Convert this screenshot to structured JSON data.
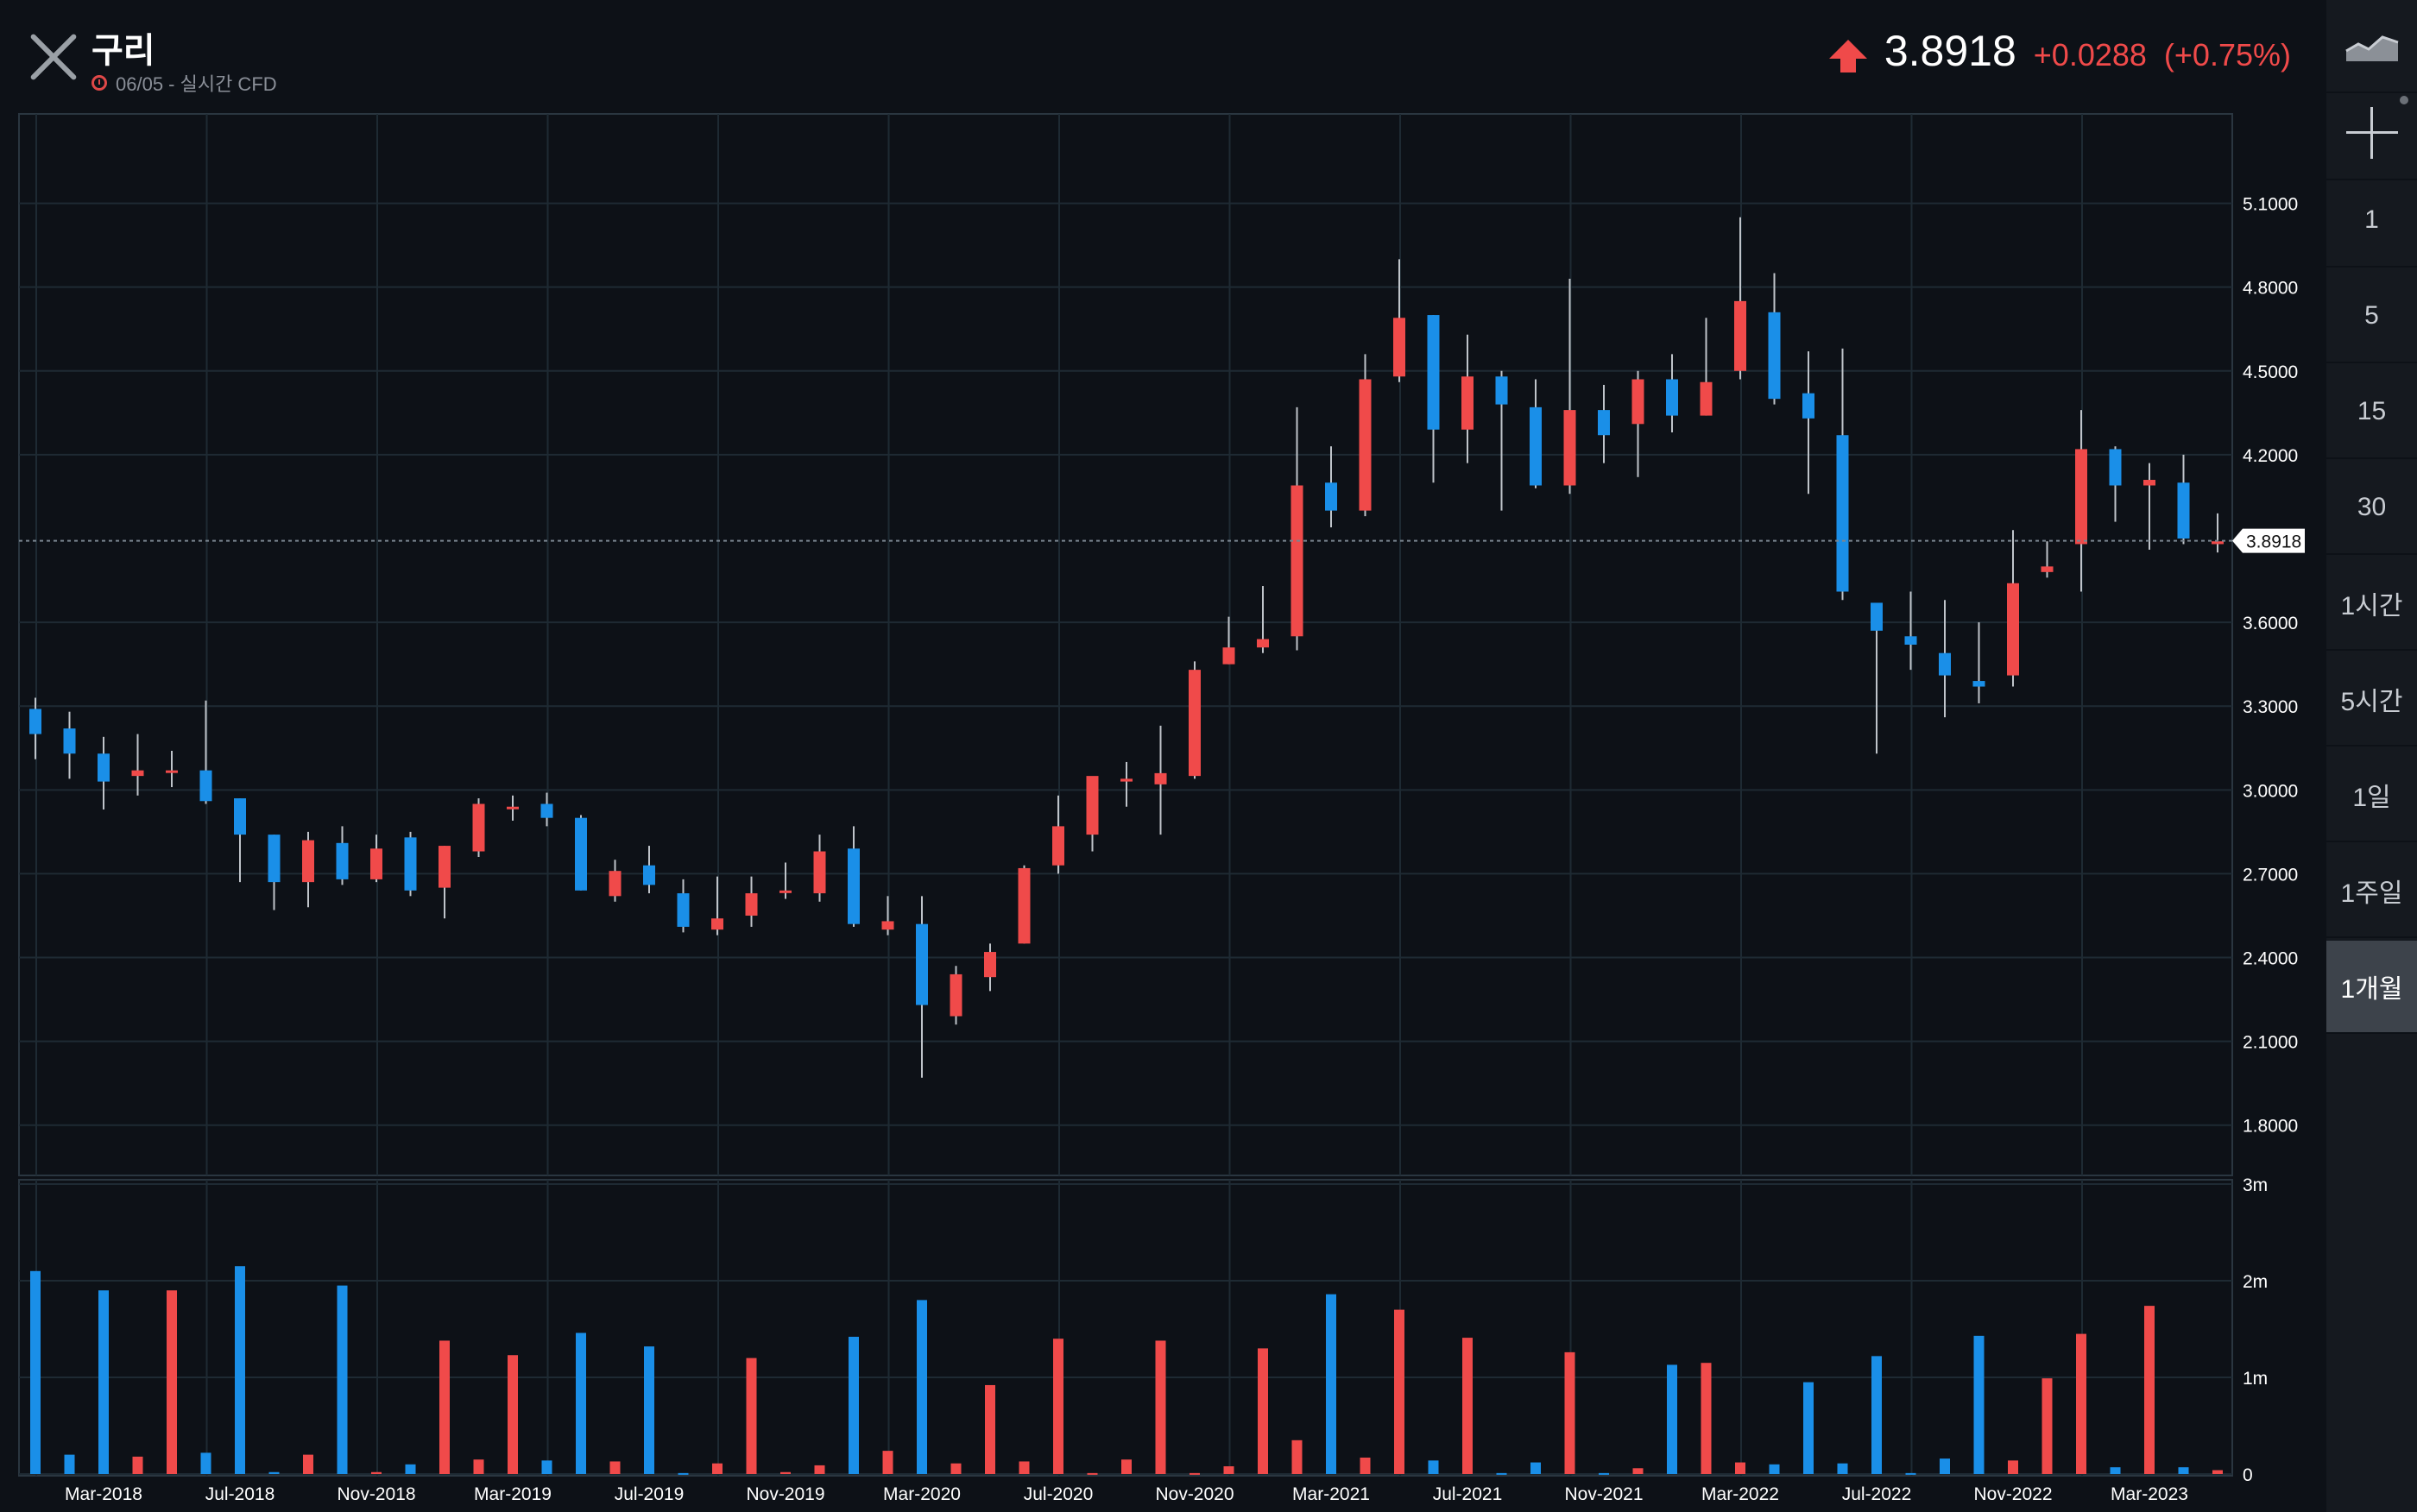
{
  "header": {
    "title": "구리",
    "subtitle": "06/05 - 실시간 CFD",
    "price": "3.8918",
    "change": "+0.0288",
    "change_pct": "(+0.75%)"
  },
  "colors": {
    "up": "#f04a4a",
    "down": "#1a8fe8",
    "background": "#0d1117",
    "grid": "#1e2a33"
  },
  "sidebar": {
    "items": [
      {
        "label": "",
        "icon": "area-chart-icon"
      },
      {
        "label": "",
        "icon": "crosshair-icon"
      },
      {
        "label": "1"
      },
      {
        "label": "5"
      },
      {
        "label": "15"
      },
      {
        "label": "30"
      },
      {
        "label": "1시간"
      },
      {
        "label": "5시간"
      },
      {
        "label": "1일"
      },
      {
        "label": "1주일"
      },
      {
        "label": "1개월",
        "active": true
      }
    ]
  },
  "chart_data": {
    "type": "candlestick",
    "current_price_label": "3.8918",
    "current_price": 3.8918,
    "ylim": [
      1.62,
      5.42
    ],
    "yticks": [
      5.1,
      4.8,
      4.5,
      4.2,
      3.6,
      3.3,
      3.0,
      2.7,
      2.4,
      2.1,
      1.8
    ],
    "ytick_labels": [
      "5.1000",
      "4.8000",
      "4.5000",
      "4.2000",
      "3.6000",
      "3.3000",
      "3.0000",
      "2.7000",
      "2.4000",
      "2.1000",
      "1.8000"
    ],
    "xtick_labels": [
      "Mar-2018",
      "Jul-2018",
      "Nov-2018",
      "Mar-2019",
      "Jul-2019",
      "Nov-2019",
      "Mar-2020",
      "Jul-2020",
      "Nov-2020",
      "Mar-2021",
      "Jul-2021",
      "Nov-2021",
      "Mar-2022",
      "Jul-2022",
      "Nov-2022",
      "Mar-2023"
    ],
    "xtick_index": [
      2,
      6,
      10,
      14,
      18,
      22,
      26,
      30,
      34,
      38,
      42,
      46,
      50,
      54,
      58,
      62
    ],
    "volume_ylim": [
      0,
      3
    ],
    "volume_ticks": [
      3,
      2,
      1,
      0
    ],
    "volume_tick_labels": [
      "3m",
      "2m",
      "1m",
      "0"
    ],
    "candles": [
      {
        "o": 3.29,
        "h": 3.33,
        "l": 3.11,
        "c": 3.2,
        "v": 2.1
      },
      {
        "o": 3.22,
        "h": 3.28,
        "l": 3.04,
        "c": 3.13,
        "v": 0.2
      },
      {
        "o": 3.13,
        "h": 3.19,
        "l": 2.93,
        "c": 3.03,
        "v": 1.9
      },
      {
        "o": 3.05,
        "h": 3.2,
        "l": 2.98,
        "c": 3.07,
        "v": 0.18
      },
      {
        "o": 3.07,
        "h": 3.14,
        "l": 3.01,
        "c": 3.07,
        "v": 1.9
      },
      {
        "o": 3.07,
        "h": 3.32,
        "l": 2.95,
        "c": 2.96,
        "v": 0.22
      },
      {
        "o": 2.97,
        "h": 2.97,
        "l": 2.67,
        "c": 2.84,
        "v": 2.15
      },
      {
        "o": 2.84,
        "h": 2.84,
        "l": 2.57,
        "c": 2.67,
        "v": 0.02
      },
      {
        "o": 2.67,
        "h": 2.85,
        "l": 2.58,
        "c": 2.82,
        "v": 0.2
      },
      {
        "o": 2.81,
        "h": 2.87,
        "l": 2.66,
        "c": 2.68,
        "v": 1.95
      },
      {
        "o": 2.68,
        "h": 2.84,
        "l": 2.67,
        "c": 2.79,
        "v": 0.02
      },
      {
        "o": 2.83,
        "h": 2.85,
        "l": 2.62,
        "c": 2.64,
        "v": 0.1
      },
      {
        "o": 2.65,
        "h": 2.8,
        "l": 2.54,
        "c": 2.8,
        "v": 1.38
      },
      {
        "o": 2.78,
        "h": 2.97,
        "l": 2.76,
        "c": 2.95,
        "v": 0.15
      },
      {
        "o": 2.94,
        "h": 2.98,
        "l": 2.89,
        "c": 2.94,
        "v": 1.23
      },
      {
        "o": 2.95,
        "h": 2.99,
        "l": 2.87,
        "c": 2.9,
        "v": 0.14
      },
      {
        "o": 2.9,
        "h": 2.91,
        "l": 2.64,
        "c": 2.64,
        "v": 1.46
      },
      {
        "o": 2.62,
        "h": 2.75,
        "l": 2.6,
        "c": 2.71,
        "v": 0.13
      },
      {
        "o": 2.73,
        "h": 2.8,
        "l": 2.63,
        "c": 2.66,
        "v": 1.32
      },
      {
        "o": 2.63,
        "h": 2.68,
        "l": 2.49,
        "c": 2.51,
        "v": 0.01
      },
      {
        "o": 2.5,
        "h": 2.69,
        "l": 2.48,
        "c": 2.54,
        "v": 0.11
      },
      {
        "o": 2.55,
        "h": 2.69,
        "l": 2.51,
        "c": 2.63,
        "v": 1.2
      },
      {
        "o": 2.64,
        "h": 2.74,
        "l": 2.61,
        "c": 2.64,
        "v": 0.02
      },
      {
        "o": 2.63,
        "h": 2.84,
        "l": 2.6,
        "c": 2.78,
        "v": 0.09
      },
      {
        "o": 2.79,
        "h": 2.87,
        "l": 2.51,
        "c": 2.52,
        "v": 1.42
      },
      {
        "o": 2.5,
        "h": 2.62,
        "l": 2.48,
        "c": 2.53,
        "v": 0.24
      },
      {
        "o": 2.52,
        "h": 2.62,
        "l": 1.97,
        "c": 2.23,
        "v": 1.8
      },
      {
        "o": 2.19,
        "h": 2.37,
        "l": 2.16,
        "c": 2.34,
        "v": 0.11
      },
      {
        "o": 2.33,
        "h": 2.45,
        "l": 2.28,
        "c": 2.42,
        "v": 0.92
      },
      {
        "o": 2.45,
        "h": 2.73,
        "l": 2.45,
        "c": 2.72,
        "v": 0.13
      },
      {
        "o": 2.73,
        "h": 2.98,
        "l": 2.7,
        "c": 2.87,
        "v": 1.4
      },
      {
        "o": 2.84,
        "h": 3.04,
        "l": 2.78,
        "c": 3.05,
        "v": 0.01
      },
      {
        "o": 3.03,
        "h": 3.1,
        "l": 2.94,
        "c": 3.04,
        "v": 0.15
      },
      {
        "o": 3.02,
        "h": 3.23,
        "l": 2.84,
        "c": 3.06,
        "v": 1.38
      },
      {
        "o": 3.05,
        "h": 3.46,
        "l": 3.04,
        "c": 3.43,
        "v": 0.01
      },
      {
        "o": 3.45,
        "h": 3.62,
        "l": 3.45,
        "c": 3.51,
        "v": 0.08
      },
      {
        "o": 3.51,
        "h": 3.73,
        "l": 3.49,
        "c": 3.54,
        "v": 1.3
      },
      {
        "o": 3.55,
        "h": 4.37,
        "l": 3.5,
        "c": 4.09,
        "v": 0.35
      },
      {
        "o": 4.1,
        "h": 4.23,
        "l": 3.94,
        "c": 4.0,
        "v": 1.86
      },
      {
        "o": 4.0,
        "h": 4.56,
        "l": 3.98,
        "c": 4.47,
        "v": 0.17
      },
      {
        "o": 4.48,
        "h": 4.9,
        "l": 4.46,
        "c": 4.69,
        "v": 1.7
      },
      {
        "o": 4.7,
        "h": 4.7,
        "l": 4.1,
        "c": 4.29,
        "v": 0.14
      },
      {
        "o": 4.29,
        "h": 4.63,
        "l": 4.17,
        "c": 4.48,
        "v": 1.41
      },
      {
        "o": 4.48,
        "h": 4.5,
        "l": 4.0,
        "c": 4.38,
        "v": 0.01
      },
      {
        "o": 4.37,
        "h": 4.47,
        "l": 4.08,
        "c": 4.09,
        "v": 0.12
      },
      {
        "o": 4.09,
        "h": 4.83,
        "l": 4.06,
        "c": 4.36,
        "v": 1.26
      },
      {
        "o": 4.36,
        "h": 4.45,
        "l": 4.17,
        "c": 4.27,
        "v": 0.01
      },
      {
        "o": 4.31,
        "h": 4.5,
        "l": 4.12,
        "c": 4.47,
        "v": 0.06
      },
      {
        "o": 4.47,
        "h": 4.56,
        "l": 4.28,
        "c": 4.34,
        "v": 1.13
      },
      {
        "o": 4.34,
        "h": 4.69,
        "l": 4.34,
        "c": 4.46,
        "v": 1.15
      },
      {
        "o": 4.5,
        "h": 5.05,
        "l": 4.47,
        "c": 4.75,
        "v": 0.12
      },
      {
        "o": 4.71,
        "h": 4.85,
        "l": 4.38,
        "c": 4.4,
        "v": 0.1
      },
      {
        "o": 4.42,
        "h": 4.57,
        "l": 4.06,
        "c": 4.33,
        "v": 0.95
      },
      {
        "o": 4.27,
        "h": 4.58,
        "l": 3.68,
        "c": 3.71,
        "v": 0.11
      },
      {
        "o": 3.67,
        "h": 3.67,
        "l": 3.13,
        "c": 3.57,
        "v": 1.22
      },
      {
        "o": 3.55,
        "h": 3.71,
        "l": 3.43,
        "c": 3.52,
        "v": 0.01
      },
      {
        "o": 3.49,
        "h": 3.68,
        "l": 3.26,
        "c": 3.41,
        "v": 0.16
      },
      {
        "o": 3.39,
        "h": 3.6,
        "l": 3.31,
        "c": 3.37,
        "v": 1.43
      },
      {
        "o": 3.41,
        "h": 3.93,
        "l": 3.37,
        "c": 3.74,
        "v": 0.14
      },
      {
        "o": 3.78,
        "h": 3.89,
        "l": 3.76,
        "c": 3.8,
        "v": 0.99
      },
      {
        "o": 3.88,
        "h": 4.36,
        "l": 3.71,
        "c": 4.22,
        "v": 1.45
      },
      {
        "o": 4.22,
        "h": 4.23,
        "l": 3.96,
        "c": 4.09,
        "v": 0.07
      },
      {
        "o": 4.09,
        "h": 4.17,
        "l": 3.86,
        "c": 4.11,
        "v": 1.74
      },
      {
        "o": 4.1,
        "h": 4.2,
        "l": 3.88,
        "c": 3.9,
        "v": 0.07
      },
      {
        "o": 3.88,
        "h": 3.99,
        "l": 3.85,
        "c": 3.89,
        "v": 0.04
      }
    ]
  }
}
